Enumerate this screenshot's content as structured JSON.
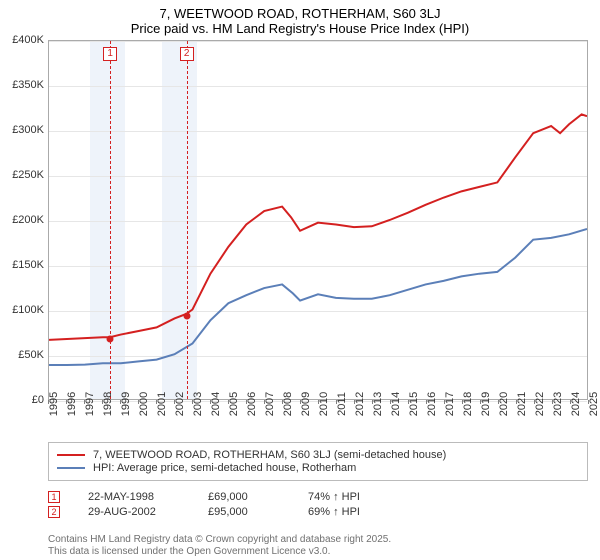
{
  "title_line1": "7, WEETWOOD ROAD, ROTHERHAM, S60 3LJ",
  "title_line2": "Price paid vs. HM Land Registry's House Price Index (HPI)",
  "chart": {
    "type": "line",
    "background_color": "#ffffff",
    "grid_color": "#e6e6e6",
    "axis_color": "#808080",
    "y": {
      "min": 0,
      "max": 400000,
      "step": 50000,
      "ticks": [
        "£0",
        "£50K",
        "£100K",
        "£150K",
        "£200K",
        "£250K",
        "£300K",
        "£350K",
        "£400K"
      ]
    },
    "x": {
      "min": 1995,
      "max": 2025,
      "step": 1,
      "ticks": [
        "1995",
        "1996",
        "1997",
        "1998",
        "1999",
        "2000",
        "2001",
        "2002",
        "2003",
        "2004",
        "2005",
        "2006",
        "2007",
        "2008",
        "2009",
        "2010",
        "2011",
        "2012",
        "2013",
        "2014",
        "2015",
        "2016",
        "2017",
        "2018",
        "2019",
        "2020",
        "2021",
        "2022",
        "2023",
        "2024",
        "2025"
      ]
    },
    "shade_bands": [
      {
        "from_year": 1997.3,
        "to_year": 1999.2,
        "color": "#eef3fa"
      },
      {
        "from_year": 2001.3,
        "to_year": 2003.2,
        "color": "#eef3fa"
      }
    ],
    "vlines": [
      {
        "year": 1998.4,
        "color": "#d42020",
        "label": "1"
      },
      {
        "year": 2002.65,
        "color": "#d42020",
        "label": "2"
      }
    ],
    "series_red": {
      "color": "#d42020",
      "width": 2,
      "label": "7, WEETWOOD ROAD, ROTHERHAM, S60 3LJ (semi-detached house)",
      "points": [
        [
          1995,
          66000
        ],
        [
          1996,
          67000
        ],
        [
          1997,
          68000
        ],
        [
          1998,
          69000
        ],
        [
          1998.4,
          69000
        ],
        [
          1999,
          72000
        ],
        [
          2000,
          76000
        ],
        [
          2001,
          80000
        ],
        [
          2002,
          90000
        ],
        [
          2002.65,
          95000
        ],
        [
          2003,
          100000
        ],
        [
          2004,
          140000
        ],
        [
          2005,
          170000
        ],
        [
          2006,
          195000
        ],
        [
          2007,
          210000
        ],
        [
          2008,
          215000
        ],
        [
          2008.5,
          203000
        ],
        [
          2009,
          188000
        ],
        [
          2010,
          197000
        ],
        [
          2011,
          195000
        ],
        [
          2012,
          192000
        ],
        [
          2013,
          193000
        ],
        [
          2014,
          200000
        ],
        [
          2015,
          208000
        ],
        [
          2016,
          217000
        ],
        [
          2017,
          225000
        ],
        [
          2018,
          232000
        ],
        [
          2019,
          237000
        ],
        [
          2020,
          242000
        ],
        [
          2021,
          270000
        ],
        [
          2022,
          297000
        ],
        [
          2023,
          305000
        ],
        [
          2023.5,
          297000
        ],
        [
          2024,
          307000
        ],
        [
          2024.7,
          318000
        ],
        [
          2025,
          316000
        ]
      ]
    },
    "series_blue": {
      "color": "#5b7fb8",
      "width": 2,
      "label": "HPI: Average price, semi-detached house, Rotherham",
      "points": [
        [
          1995,
          38000
        ],
        [
          1996,
          38000
        ],
        [
          1997,
          38500
        ],
        [
          1998,
          40000
        ],
        [
          1999,
          40000
        ],
        [
          2000,
          42000
        ],
        [
          2001,
          44000
        ],
        [
          2002,
          50000
        ],
        [
          2003,
          62000
        ],
        [
          2004,
          88000
        ],
        [
          2005,
          107000
        ],
        [
          2006,
          116000
        ],
        [
          2007,
          124000
        ],
        [
          2008,
          128000
        ],
        [
          2008.6,
          118000
        ],
        [
          2009,
          110000
        ],
        [
          2010,
          117000
        ],
        [
          2011,
          113000
        ],
        [
          2012,
          112000
        ],
        [
          2013,
          112000
        ],
        [
          2014,
          116000
        ],
        [
          2015,
          122000
        ],
        [
          2016,
          128000
        ],
        [
          2017,
          132000
        ],
        [
          2018,
          137000
        ],
        [
          2019,
          140000
        ],
        [
          2020,
          142000
        ],
        [
          2021,
          158000
        ],
        [
          2022,
          178000
        ],
        [
          2023,
          180000
        ],
        [
          2024,
          184000
        ],
        [
          2025,
          190000
        ]
      ]
    },
    "sale_points": [
      {
        "year": 1998.4,
        "value": 69000,
        "color": "#d42020"
      },
      {
        "year": 2002.65,
        "value": 95000,
        "color": "#d42020"
      }
    ]
  },
  "legend": {
    "row1_color": "#d42020",
    "row2_color": "#5b7fb8"
  },
  "sales_table": [
    {
      "n": "1",
      "date": "22-MAY-1998",
      "price": "£69,000",
      "hpi": "74% ↑ HPI",
      "color": "#d42020"
    },
    {
      "n": "2",
      "date": "29-AUG-2002",
      "price": "£95,000",
      "hpi": "69% ↑ HPI",
      "color": "#d42020"
    }
  ],
  "footer_line1": "Contains HM Land Registry data © Crown copyright and database right 2025.",
  "footer_line2": "This data is licensed under the Open Government Licence v3.0."
}
